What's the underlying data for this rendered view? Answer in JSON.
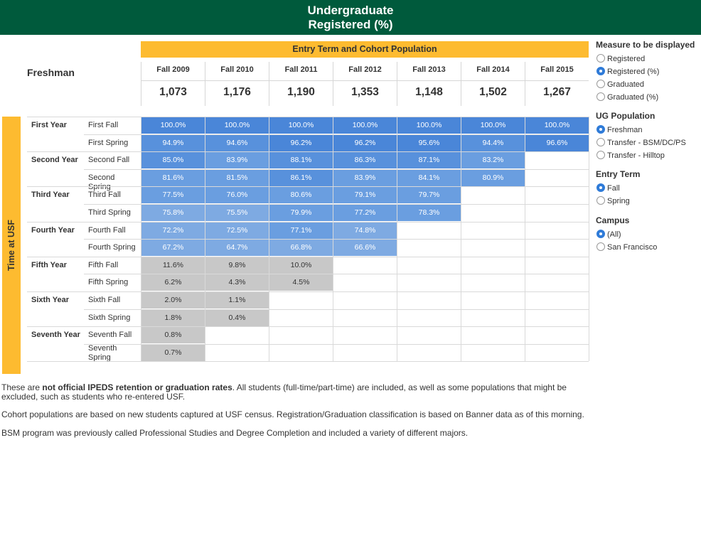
{
  "header": {
    "line1": "Undergraduate",
    "line2": "Registered (%)"
  },
  "cohort_bar_label": "Entry Term and Cohort Population",
  "row_group_label": "Freshman",
  "side_label": "Time at USF",
  "columns": [
    {
      "term": "Fall 2009",
      "population": "1,073"
    },
    {
      "term": "Fall 2010",
      "population": "1,176"
    },
    {
      "term": "Fall 2011",
      "population": "1,190"
    },
    {
      "term": "Fall 2012",
      "population": "1,353"
    },
    {
      "term": "Fall 2013",
      "population": "1,148"
    },
    {
      "term": "Fall 2014",
      "population": "1,502"
    },
    {
      "term": "Fall 2015",
      "population": "1,267"
    }
  ],
  "years": [
    {
      "label": "First Year"
    },
    {
      "label": "Second Year"
    },
    {
      "label": "Third Year"
    },
    {
      "label": "Fourth Year"
    },
    {
      "label": "Fifth Year"
    },
    {
      "label": "Sixth Year"
    },
    {
      "label": "Seventh Year"
    }
  ],
  "rows": [
    {
      "semester": "First Fall",
      "values": [
        "100.0%",
        "100.0%",
        "100.0%",
        "100.0%",
        "100.0%",
        "100.0%",
        "100.0%"
      ]
    },
    {
      "semester": "First Spring",
      "values": [
        "94.9%",
        "94.6%",
        "96.2%",
        "96.2%",
        "95.6%",
        "94.4%",
        "96.6%"
      ]
    },
    {
      "semester": "Second Fall",
      "values": [
        "85.0%",
        "83.9%",
        "88.1%",
        "86.3%",
        "87.1%",
        "83.2%",
        ""
      ]
    },
    {
      "semester": "Second Spring",
      "values": [
        "81.6%",
        "81.5%",
        "86.1%",
        "83.9%",
        "84.1%",
        "80.9%",
        ""
      ]
    },
    {
      "semester": "Third Fall",
      "values": [
        "77.5%",
        "76.0%",
        "80.6%",
        "79.1%",
        "79.7%",
        "",
        ""
      ]
    },
    {
      "semester": "Third Spring",
      "values": [
        "75.8%",
        "75.5%",
        "79.9%",
        "77.2%",
        "78.3%",
        "",
        ""
      ]
    },
    {
      "semester": "Fourth Fall",
      "values": [
        "72.2%",
        "72.5%",
        "77.1%",
        "74.8%",
        "",
        "",
        ""
      ]
    },
    {
      "semester": "Fourth Spring",
      "values": [
        "67.2%",
        "64.7%",
        "66.8%",
        "66.6%",
        "",
        "",
        ""
      ]
    },
    {
      "semester": "Fifth Fall",
      "values": [
        "11.6%",
        "9.8%",
        "10.0%",
        "",
        "",
        "",
        ""
      ]
    },
    {
      "semester": "Fifth Spring",
      "values": [
        "6.2%",
        "4.3%",
        "4.5%",
        "",
        "",
        "",
        ""
      ]
    },
    {
      "semester": "Sixth Fall",
      "values": [
        "2.0%",
        "1.1%",
        "",
        "",
        "",
        "",
        ""
      ]
    },
    {
      "semester": "Sixth Spring",
      "values": [
        "1.8%",
        "0.4%",
        "",
        "",
        "",
        "",
        ""
      ]
    },
    {
      "semester": "Seventh Fall",
      "values": [
        "0.8%",
        "",
        "",
        "",
        "",
        "",
        ""
      ]
    },
    {
      "semester": "Seventh Spring",
      "values": [
        "0.7%",
        "",
        "",
        "",
        "",
        "",
        ""
      ]
    }
  ],
  "controls": {
    "measure": {
      "title": "Measure to be displayed",
      "options": [
        "Registered",
        "Registered (%)",
        "Graduated",
        "Graduated (%)"
      ],
      "selected": "Registered (%)"
    },
    "population": {
      "title": "UG Population",
      "options": [
        "Freshman",
        "Transfer - BSM/DC/PS",
        "Transfer - Hilltop"
      ],
      "selected": "Freshman"
    },
    "entry_term": {
      "title": "Entry Term",
      "options": [
        "Fall",
        "Spring"
      ],
      "selected": "Fall"
    },
    "campus": {
      "title": "Campus",
      "options": [
        "(All)",
        "San Francisco"
      ],
      "selected": "(All)"
    }
  },
  "notes": {
    "n1_pre": "These are ",
    "n1_bold": "not official IPEDS retention or graduation rates",
    "n1_post": ". All students (full-time/part-time) are included, as well as some populations that might be excluded, such as students who re-entered USF.",
    "n2": "Cohort populations are based on new students captured at USF census. Registration/Graduation classification is based on Banner data as of this morning.",
    "n3": "BSM program was previously called Professional Studies and Degree Completion and included a variety of different majors."
  },
  "colors": {
    "header_green": "#005a3c",
    "accent_gold": "#fdbb30",
    "cell_blue": "#4a86d8",
    "cell_gray": "#c8c8c8",
    "radio_selected": "#2f7bd8"
  }
}
